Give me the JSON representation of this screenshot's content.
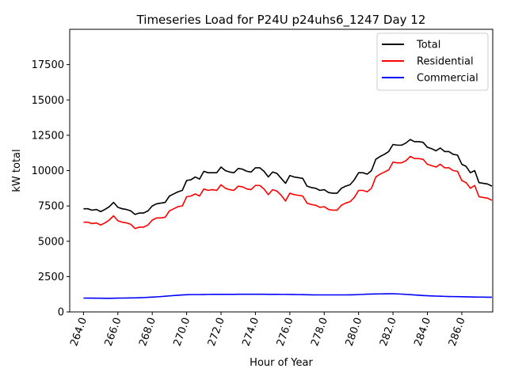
{
  "chart_data": {
    "type": "line",
    "title": "Timeseries Load for P24U p24uhs6_1247  Day 12",
    "xlabel": "Hour of Year",
    "ylabel": "kW total",
    "xlim": [
      263.2,
      287.8
    ],
    "ylim": [
      0,
      20000
    ],
    "xticks": [
      264,
      266,
      268,
      270,
      272,
      274,
      276,
      278,
      280,
      282,
      284,
      286
    ],
    "xtick_labels": [
      "264.0",
      "266.0",
      "268.0",
      "270.0",
      "272.0",
      "274.0",
      "276.0",
      "278.0",
      "280.0",
      "282.0",
      "284.0",
      "286.0"
    ],
    "yticks": [
      0,
      2500,
      5000,
      7500,
      10000,
      12500,
      15000,
      17500
    ],
    "ytick_labels": [
      "0",
      "2500",
      "5000",
      "7500",
      "10000",
      "12500",
      "15000",
      "17500"
    ],
    "legend_position": "top-right",
    "x": [
      264.0,
      264.25,
      264.5,
      264.75,
      265.0,
      265.25,
      265.5,
      265.75,
      266.0,
      266.25,
      266.5,
      266.75,
      267.0,
      267.25,
      267.5,
      267.75,
      268.0,
      268.25,
      268.5,
      268.75,
      269.0,
      269.25,
      269.5,
      269.75,
      270.0,
      270.25,
      270.5,
      270.75,
      271.0,
      271.25,
      271.5,
      271.75,
      272.0,
      272.25,
      272.5,
      272.75,
      273.0,
      273.25,
      273.5,
      273.75,
      274.0,
      274.25,
      274.5,
      274.75,
      275.0,
      275.25,
      275.5,
      275.75,
      276.0,
      276.25,
      276.5,
      276.75,
      277.0,
      277.25,
      277.5,
      277.75,
      278.0,
      278.25,
      278.5,
      278.75,
      279.0,
      279.25,
      279.5,
      279.75,
      280.0,
      280.25,
      280.5,
      280.75,
      281.0,
      281.25,
      281.5,
      281.75,
      282.0,
      282.25,
      282.5,
      282.75,
      283.0,
      283.25,
      283.5,
      283.75,
      284.0,
      284.25,
      284.5,
      284.75,
      285.0,
      285.25,
      285.5,
      285.75,
      286.0,
      286.25,
      286.5,
      286.75,
      287.0,
      287.25,
      287.5,
      287.75
    ],
    "series": [
      {
        "name": "Total",
        "color": "#000000",
        "values": [
          7300,
          7300,
          7200,
          7250,
          7100,
          7250,
          7450,
          7750,
          7400,
          7300,
          7250,
          7150,
          6900,
          7000,
          7000,
          7150,
          7500,
          7650,
          7700,
          7750,
          8200,
          8350,
          8500,
          8600,
          9300,
          9350,
          9550,
          9400,
          9950,
          9850,
          9850,
          9850,
          10250,
          10000,
          9900,
          9850,
          10150,
          10100,
          9950,
          9900,
          10200,
          10200,
          9950,
          9550,
          9900,
          9800,
          9450,
          9100,
          9650,
          9550,
          9500,
          9450,
          8900,
          8800,
          8750,
          8600,
          8650,
          8450,
          8400,
          8400,
          8750,
          8900,
          9000,
          9350,
          9850,
          9850,
          9750,
          10000,
          10800,
          11000,
          11150,
          11350,
          11850,
          11800,
          11800,
          11950,
          12200,
          12050,
          12050,
          12000,
          11650,
          11550,
          11400,
          11600,
          11350,
          11350,
          11150,
          11100,
          10450,
          10300,
          9850,
          10000,
          9150,
          9100,
          9050,
          8900
        ]
      },
      {
        "name": "Residential",
        "color": "#ff0000",
        "values": [
          6350,
          6350,
          6250,
          6300,
          6150,
          6300,
          6500,
          6800,
          6450,
          6350,
          6300,
          6200,
          5900,
          6000,
          6000,
          6150,
          6500,
          6650,
          6650,
          6700,
          7150,
          7300,
          7450,
          7500,
          8150,
          8200,
          8350,
          8200,
          8700,
          8600,
          8650,
          8600,
          9000,
          8750,
          8650,
          8600,
          8900,
          8850,
          8700,
          8650,
          8950,
          8950,
          8700,
          8300,
          8650,
          8550,
          8250,
          7850,
          8400,
          8300,
          8250,
          8200,
          7700,
          7600,
          7550,
          7400,
          7450,
          7250,
          7200,
          7200,
          7550,
          7700,
          7800,
          8100,
          8600,
          8600,
          8500,
          8750,
          9550,
          9750,
          9900,
          10050,
          10600,
          10550,
          10550,
          10700,
          11000,
          10850,
          10850,
          10800,
          10450,
          10350,
          10250,
          10450,
          10200,
          10200,
          10000,
          9950,
          9300,
          9150,
          8750,
          8950,
          8150,
          8100,
          8050,
          7900
        ]
      },
      {
        "name": "Commercial",
        "color": "#0000ff",
        "values": [
          980,
          975,
          975,
          970,
          970,
          965,
          965,
          970,
          975,
          980,
          985,
          990,
          995,
          1005,
          1015,
          1030,
          1045,
          1065,
          1085,
          1110,
          1135,
          1160,
          1180,
          1200,
          1215,
          1225,
          1225,
          1225,
          1230,
          1240,
          1245,
          1245,
          1245,
          1245,
          1245,
          1245,
          1250,
          1250,
          1250,
          1250,
          1250,
          1250,
          1250,
          1245,
          1245,
          1245,
          1240,
          1240,
          1235,
          1230,
          1225,
          1220,
          1215,
          1210,
          1205,
          1205,
          1205,
          1205,
          1205,
          1205,
          1205,
          1205,
          1210,
          1215,
          1225,
          1240,
          1255,
          1265,
          1270,
          1275,
          1280,
          1285,
          1285,
          1275,
          1260,
          1240,
          1220,
          1200,
          1180,
          1160,
          1145,
          1130,
          1120,
          1110,
          1100,
          1090,
          1085,
          1080,
          1075,
          1070,
          1060,
          1055,
          1050,
          1045,
          1040,
          1040
        ]
      }
    ]
  }
}
